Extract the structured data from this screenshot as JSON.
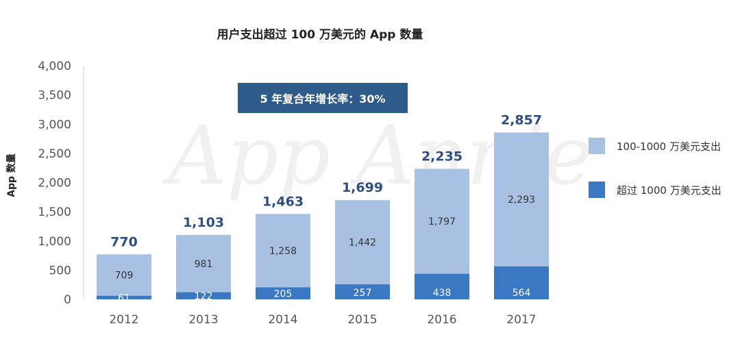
{
  "chart_data": {
    "type": "bar",
    "stacked": true,
    "title": "用户支出超过 100 万美元的 App 数量",
    "ylabel": "App 数量",
    "xlabel": "",
    "categories": [
      "2012",
      "2013",
      "2014",
      "2015",
      "2016",
      "2017"
    ],
    "ylim": [
      0,
      4000
    ],
    "yticks": [
      0,
      500,
      1000,
      1500,
      2000,
      2500,
      3000,
      3500,
      4000
    ],
    "ytick_labels": [
      "0",
      "500",
      "1,000",
      "1,500",
      "2,000",
      "2,500",
      "3,000",
      "3,500",
      "4,000"
    ],
    "series": [
      {
        "name": "超过 1000 万美元支出",
        "color": "#3a78c3",
        "values": [
          61,
          122,
          205,
          257,
          438,
          564
        ],
        "labels": [
          "61",
          "122",
          "205",
          "257",
          "438",
          "564"
        ]
      },
      {
        "name": "100-1000 万美元支出",
        "color": "#a8c0e1",
        "values": [
          709,
          981,
          1258,
          1442,
          1797,
          2293
        ],
        "labels": [
          "709",
          "981",
          "1,258",
          "1,442",
          "1,797",
          "2,293"
        ]
      }
    ],
    "totals": [
      770,
      1103,
      1463,
      1699,
      2235,
      2857
    ],
    "total_labels": [
      "770",
      "1,103",
      "1,463",
      "1,699",
      "2,235",
      "2,857"
    ],
    "annotation": "5 年复合年增长率：30%",
    "annotation_color": "#2e5b8a",
    "legend_position": "right",
    "grid": false
  },
  "watermark": "App Annie"
}
